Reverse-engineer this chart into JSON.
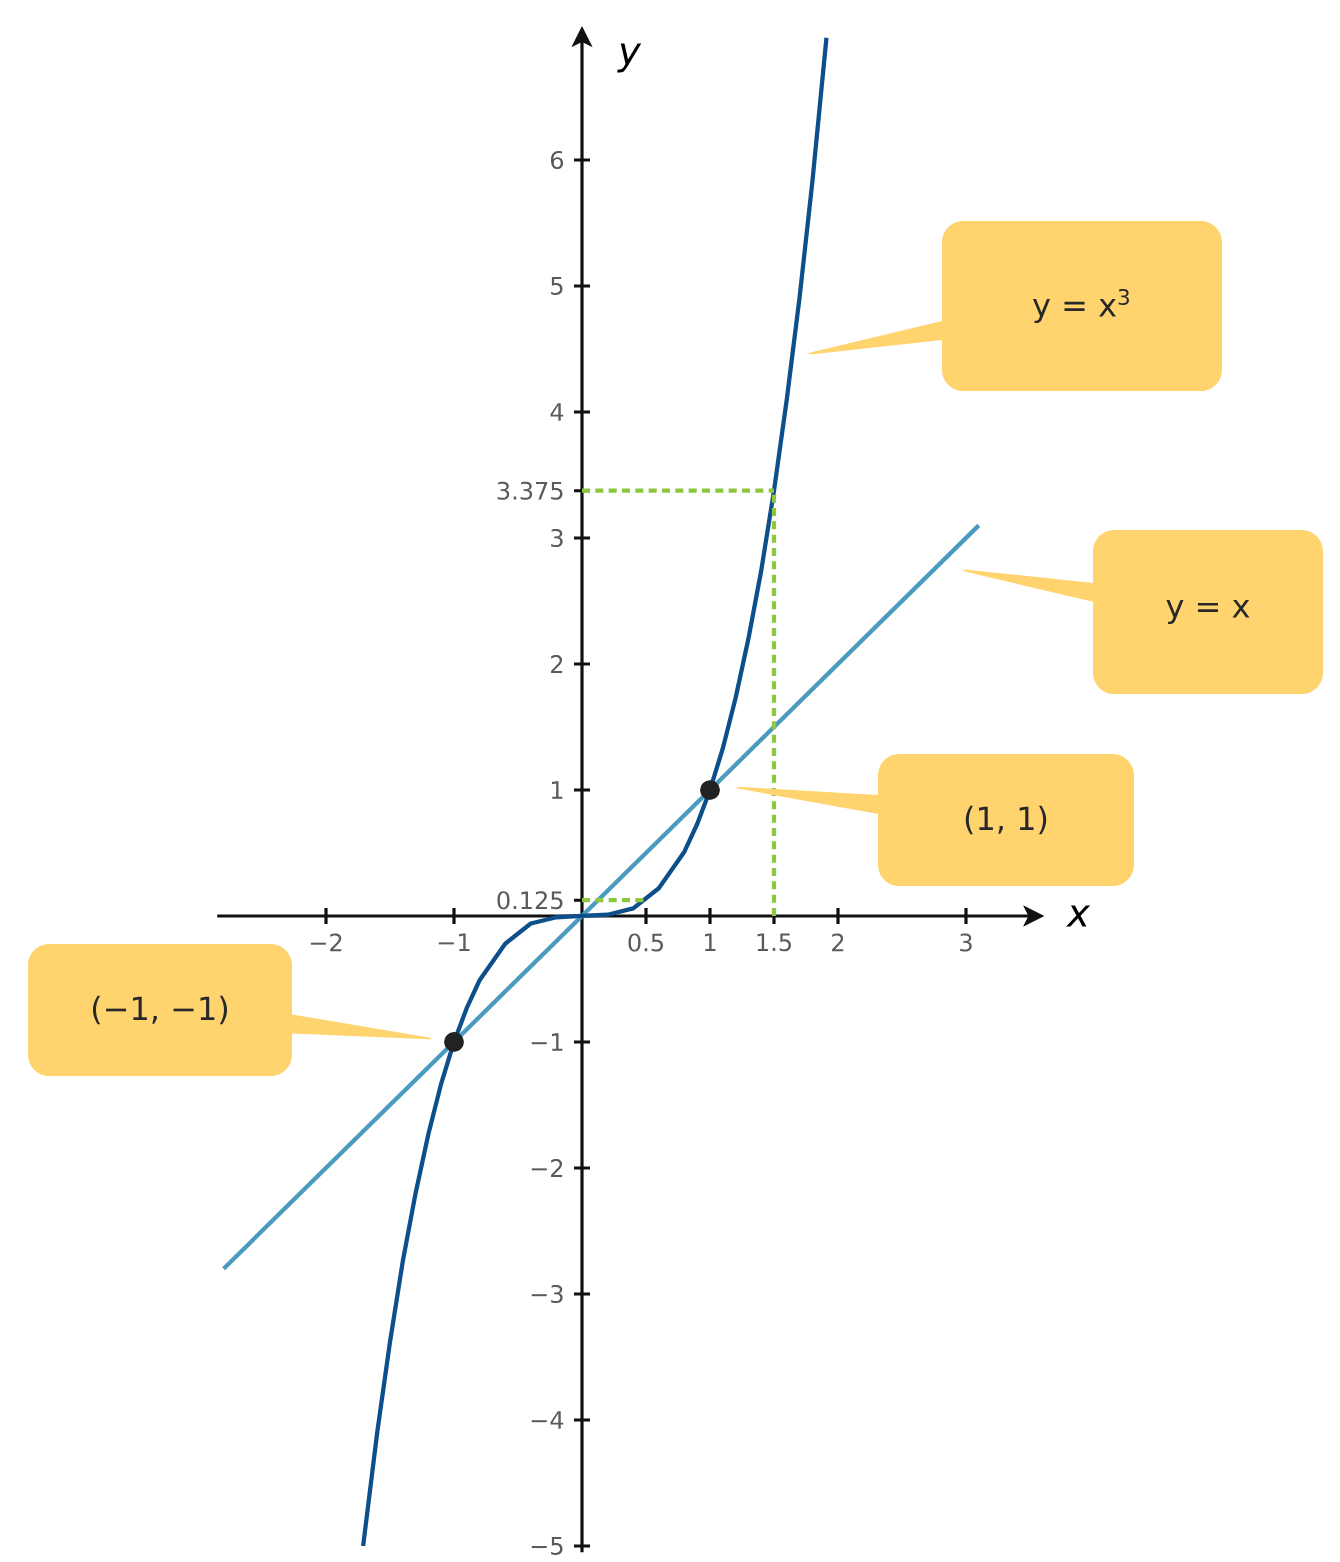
{
  "chart_data": {
    "type": "line",
    "xlabel": "x",
    "ylabel": "y",
    "xlim": [
      -2.85,
      3.55
    ],
    "ylim": [
      -5.05,
      7
    ],
    "xticks": [
      {
        "value": -2,
        "label": "−2"
      },
      {
        "value": -1,
        "label": "−1"
      },
      0.5,
      1,
      1.5,
      2,
      3
    ],
    "yticks": [
      {
        "value": -5,
        "label": "−5"
      },
      {
        "value": -4,
        "label": "−4"
      },
      {
        "value": -3,
        "label": "−3"
      },
      {
        "value": -2,
        "label": "−2"
      },
      {
        "value": -1,
        "label": "−1"
      },
      0.125,
      1,
      2,
      3,
      3.375,
      4,
      5,
      6
    ],
    "series": [
      {
        "color": "#4a9bc0",
        "x": [
          -2.8,
          3.1
        ],
        "values": [
          -2.8,
          3.1
        ]
      },
      {
        "color": "#0d4f8b",
        "x": [
          -1.71,
          -1.6,
          -1.5,
          -1.4,
          -1.3,
          -1.2,
          -1.1,
          -1,
          -0.9,
          -0.8,
          -0.6,
          -0.4,
          -0.2,
          0,
          0.2,
          0.4,
          0.6,
          0.8,
          0.9,
          1,
          1.1,
          1.2,
          1.3,
          1.4,
          1.5,
          1.6,
          1.7,
          1.8,
          1.91
        ],
        "values": [
          -5.0,
          -4.1,
          -3.38,
          -2.74,
          -2.2,
          -1.73,
          -1.33,
          -1,
          -0.73,
          -0.51,
          -0.22,
          -0.06,
          -0.01,
          0,
          0.01,
          0.06,
          0.22,
          0.51,
          0.73,
          1,
          1.33,
          1.73,
          2.2,
          2.74,
          3.375,
          4.1,
          4.91,
          5.83,
          6.97
        ]
      },
      {
        "color": "#8dc63f",
        "line_style": "dashed",
        "x": [
          1.5,
          1.5
        ],
        "values": [
          0,
          3.375
        ]
      },
      {
        "color": "#8dc63f",
        "line_style": "dashed",
        "x": [
          0,
          1.5
        ],
        "values": [
          3.375,
          3.375
        ]
      },
      {
        "color": "#8dc63f",
        "line_style": "dashed",
        "x": [
          0,
          0.5
        ],
        "values": [
          0.125,
          0.125
        ]
      },
      {
        "type": "scatter",
        "marker": "circle",
        "color": "#222222",
        "x": [
          -1,
          1
        ],
        "values": [
          -1,
          1
        ]
      }
    ],
    "annotations": [
      "y = x$^{3}$",
      "y = x",
      "(1, 1)",
      "(−1, −1)"
    ]
  }
}
